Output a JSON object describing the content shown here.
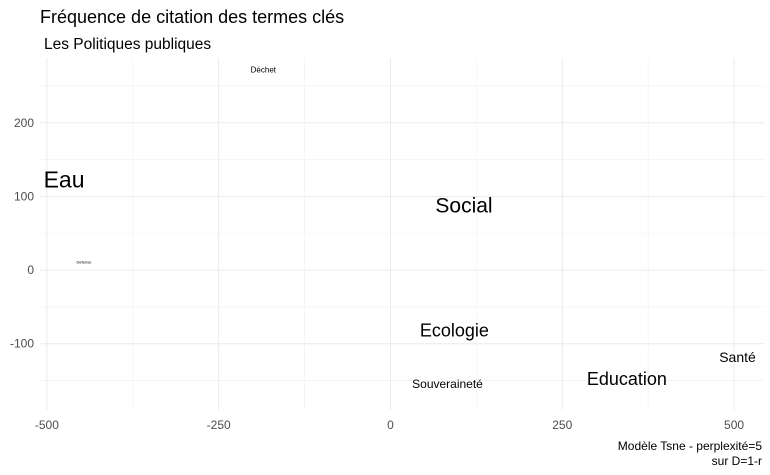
{
  "chart_data": {
    "type": "scatter",
    "title": "Fréquence de citation des termes clés",
    "subtitle": "Les Politiques publiques",
    "caption_lines": [
      "Modèle Tsne - perplexité=5",
      "sur D=1-r"
    ],
    "xlim": [
      -510,
      545
    ],
    "ylim": [
      -190,
      288
    ],
    "x_ticks": [
      -500,
      -250,
      0,
      250,
      500
    ],
    "x_tick_labels": [
      "-500",
      "-250",
      "0",
      "250",
      "500"
    ],
    "y_ticks": [
      -100,
      0,
      100,
      200
    ],
    "y_tick_labels": [
      "-100",
      "0",
      "100",
      "200"
    ],
    "grid": true,
    "points": [
      {
        "label": "Eau",
        "x": -475,
        "y": 123,
        "size": 23
      },
      {
        "label": "Social",
        "x": 107,
        "y": 87,
        "size": 21
      },
      {
        "label": "Ecologie",
        "x": 93,
        "y": -82,
        "size": 18
      },
      {
        "label": "Education",
        "x": 344,
        "y": -148,
        "size": 18
      },
      {
        "label": "Santé",
        "x": 505,
        "y": -118,
        "size": 14
      },
      {
        "label": "Souveraineté",
        "x": 83,
        "y": -155,
        "size": 12
      },
      {
        "label": "Déchet",
        "x": -185,
        "y": 272,
        "size": 8
      },
      {
        "label": "Défense",
        "x": -446,
        "y": 11,
        "size": 4
      }
    ]
  }
}
